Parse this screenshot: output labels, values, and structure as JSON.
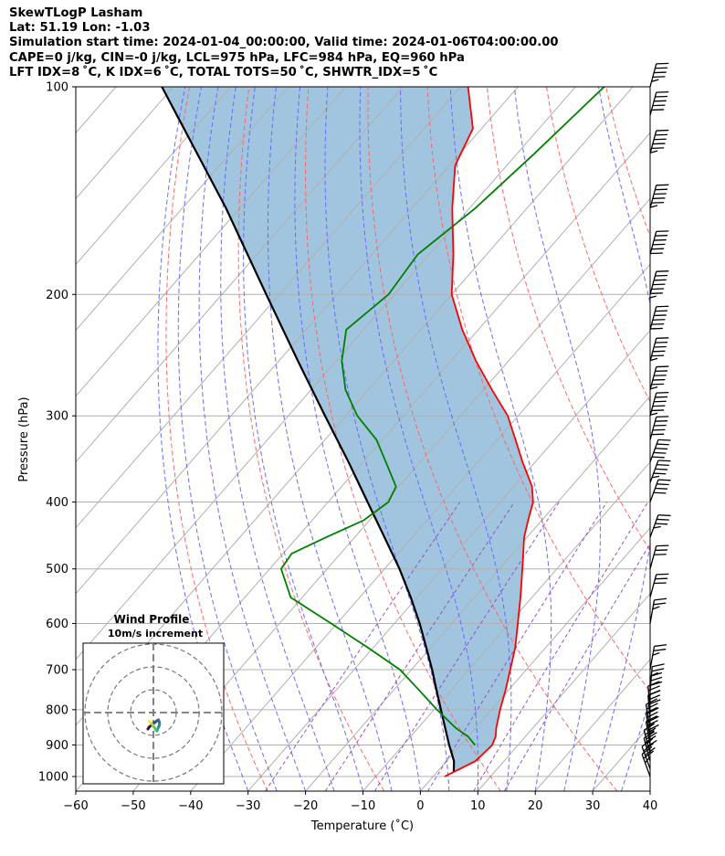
{
  "header": {
    "line1": "SkewTLogP Lasham",
    "line2": "Lat: 51.19   Lon: -1.03",
    "line3": "Simulation start time: 2024-01-04_00:00:00, Valid time: 2024-01-06T04:00:00.00",
    "line4": "CAPE=0 j/kg, CIN=-0 j/kg, LCL=975 hPa, LFC=984 hPa, EQ=960 hPa",
    "line5": "LFT IDX=8 ˚C, K IDX=6 ˚C, TOTAL TOTS=50 ˚C, SHWTR_IDX=5 ˚C"
  },
  "inset": {
    "title": "Wind Profile",
    "subtitle": "10m/s increment"
  },
  "colors": {
    "temperature": "#ff0000",
    "dewpoint": "#008000",
    "parcel": "#000000",
    "cape_fill": "#a1c5de",
    "isotherm": "#b0b0b0",
    "dry_adiabat": "#ff6666",
    "moist_adiabat": "#6a6aff",
    "mixing_ratio": "#9a4fc4",
    "barb": "#000000"
  },
  "chart_data": {
    "type": "line",
    "xlabel": "Temperature (˚C)",
    "ylabel": "Pressure (hPa)",
    "xlim": [
      -60,
      40
    ],
    "ylim": [
      1050,
      100
    ],
    "y_scale": "log",
    "skew": true,
    "grid": true,
    "x_ticks": [
      -60,
      -50,
      -40,
      -30,
      -20,
      -10,
      0,
      10,
      20,
      30,
      40
    ],
    "y_ticks": [
      1000,
      900,
      800,
      700,
      600,
      500,
      400,
      300,
      200,
      100
    ],
    "series": [
      {
        "key": "temperature",
        "pressure": [
          1000,
          975,
          950,
          925,
          900,
          875,
          850,
          800,
          750,
          700,
          650,
          600,
          550,
          500,
          450,
          425,
          400,
          380,
          350,
          325,
          300,
          275,
          250,
          225,
          200,
          175,
          150,
          130,
          115,
          100
        ],
        "temperature": [
          2,
          3.5,
          5,
          5.3,
          5.5,
          4.8,
          3.6,
          1.5,
          -0.5,
          -2.8,
          -5.3,
          -8.5,
          -12,
          -16,
          -20.5,
          -22.4,
          -24.3,
          -26.8,
          -32.2,
          -36.8,
          -41.8,
          -48.5,
          -55.6,
          -62.8,
          -70,
          -75.8,
          -83,
          -89,
          -91.5,
          -98.7
        ]
      },
      {
        "key": "dewpoint",
        "pressure": [
          900,
          875,
          850,
          800,
          750,
          700,
          650,
          600,
          550,
          500,
          475,
          450,
          425,
          400,
          380,
          350,
          325,
          300,
          275,
          250,
          225,
          200,
          175,
          150,
          125,
          100
        ],
        "temperature": [
          2.5,
          0,
          -3.5,
          -9.5,
          -15.5,
          -22,
          -31,
          -41,
          -52,
          -58,
          -58.5,
          -55,
          -51,
          -49.5,
          -50.5,
          -56,
          -61,
          -68,
          -74,
          -79,
          -83,
          -81,
          -82,
          -79,
          -77,
          -75
        ]
      },
      {
        "key": "parcel",
        "pressure": [
          985,
          950,
          900,
          850,
          800,
          750,
          700,
          650,
          600,
          550,
          500,
          450,
          400,
          350,
          300,
          250,
          200,
          150,
          100
        ],
        "temperature": [
          2.9,
          1.3,
          -2,
          -5.3,
          -8.8,
          -12.5,
          -16.4,
          -20.8,
          -25.6,
          -31.1,
          -37.4,
          -44.8,
          -53.1,
          -62.5,
          -73.6,
          -86.6,
          -102.3,
          -122.4,
          -152
        ]
      }
    ],
    "wind_barbs": {
      "pressure": [
        1000,
        975,
        950,
        925,
        900,
        875,
        850,
        825,
        800,
        775,
        750,
        700,
        600,
        550,
        500,
        450,
        400,
        375,
        350,
        325,
        300,
        275,
        250,
        225,
        200,
        175,
        150,
        125,
        110,
        100
      ],
      "speed_kt": [
        25,
        30,
        30,
        35,
        35,
        35,
        30,
        30,
        30,
        30,
        25,
        25,
        25,
        30,
        30,
        35,
        40,
        45,
        50,
        50,
        55,
        55,
        55,
        60,
        65,
        60,
        55,
        55,
        50,
        45
      ],
      "direction_deg": [
        340,
        340,
        345,
        345,
        350,
        350,
        350,
        355,
        355,
        0,
        5,
        10,
        10,
        15,
        15,
        20,
        20,
        20,
        20,
        15,
        15,
        15,
        15,
        15,
        15,
        15,
        15,
        15,
        15,
        15
      ]
    },
    "hodograph": {
      "title": "Wind Profile",
      "subtitle": "10m/s increment",
      "rings_ms": [
        10,
        20,
        30
      ],
      "u_ms": [
        -1.5,
        -1.2,
        -0.6,
        0,
        0.5,
        1,
        1.4,
        1.6,
        1.7,
        1.5,
        1.2,
        1,
        0.6,
        0.2,
        -0.2,
        -0.6,
        -0.9,
        -1.1
      ],
      "v_ms": [
        -4.5,
        -4,
        -3.5,
        -3,
        -2.6,
        -2.2,
        -2,
        -2.6,
        -3.1,
        -3.8,
        -4.4,
        -5,
        -4.6,
        -4,
        -3.4,
        -2.9,
        -2.6,
        -2.4
      ]
    }
  }
}
